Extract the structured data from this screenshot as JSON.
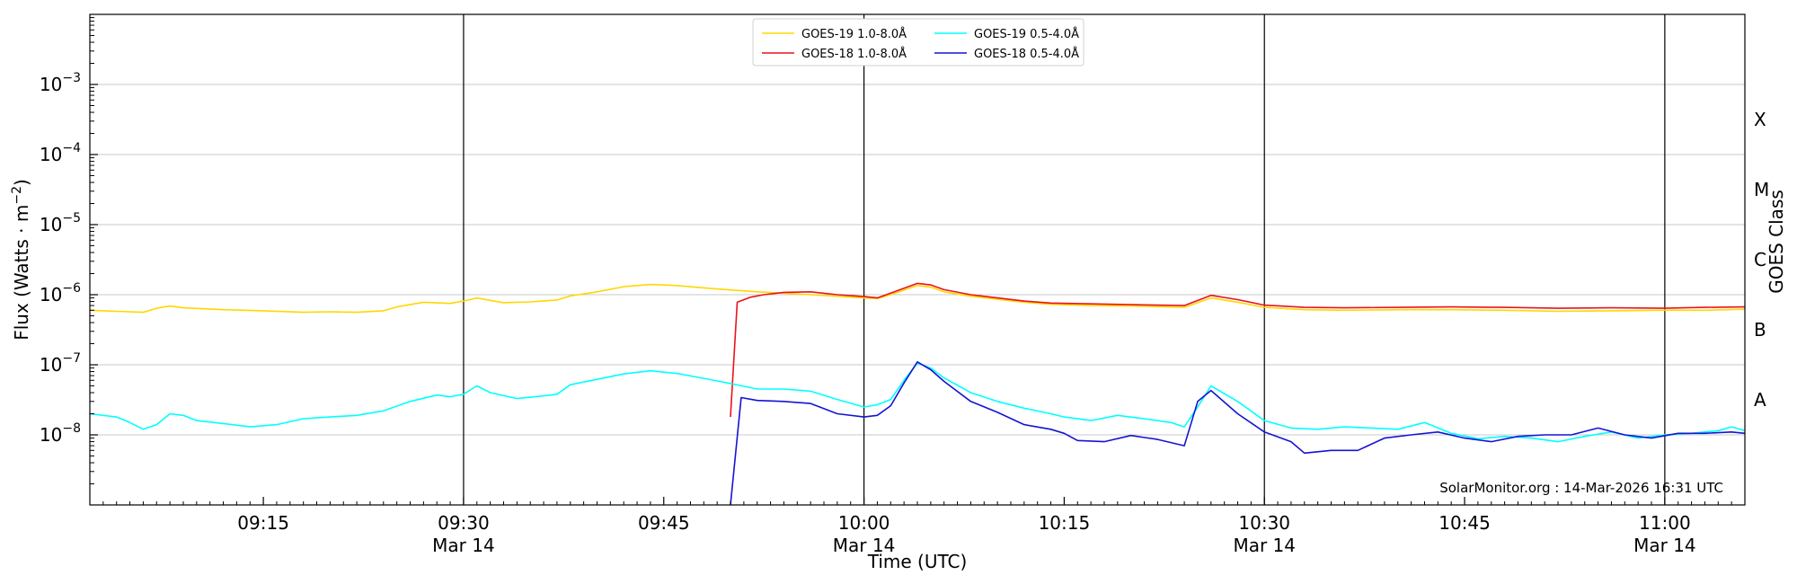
{
  "chart_data": {
    "type": "line",
    "title": "",
    "xlabel": "Time (UTC)",
    "ylabel": "Flux (Watts · m",
    "ylabel_sup": "−2",
    "ylabel_close": ")",
    "right_label": "GOES Class",
    "y_scale": "log",
    "ylim": [
      1e-09,
      0.01
    ],
    "xlim": [
      "09:02",
      "11:06"
    ],
    "grid": "horizontal",
    "legend_position": "top-center",
    "y_ticks": [
      {
        "value": 1e-08,
        "base": "10",
        "exp": "−8"
      },
      {
        "value": 1e-07,
        "base": "10",
        "exp": "−7"
      },
      {
        "value": 1e-06,
        "base": "10",
        "exp": "−6"
      },
      {
        "value": 1e-05,
        "base": "10",
        "exp": "−5"
      },
      {
        "value": 0.0001,
        "base": "10",
        "exp": "−4"
      },
      {
        "value": 0.001,
        "base": "10",
        "exp": "−3"
      }
    ],
    "x_ticks": [
      {
        "time": "09:15",
        "label": "09:15",
        "sublabel": ""
      },
      {
        "time": "09:30",
        "label": "09:30",
        "sublabel": "Mar 14"
      },
      {
        "time": "09:45",
        "label": "09:45",
        "sublabel": ""
      },
      {
        "time": "10:00",
        "label": "10:00",
        "sublabel": "Mar 14"
      },
      {
        "time": "10:15",
        "label": "10:15",
        "sublabel": ""
      },
      {
        "time": "10:30",
        "label": "10:30",
        "sublabel": "Mar 14"
      },
      {
        "time": "10:45",
        "label": "10:45",
        "sublabel": ""
      },
      {
        "time": "11:00",
        "label": "11:00",
        "sublabel": "Mar 14"
      }
    ],
    "day_lines": [
      "09:30",
      "10:00",
      "10:30",
      "11:00"
    ],
    "goes_classes": [
      {
        "label": "A",
        "value": 3.16e-08
      },
      {
        "label": "B",
        "value": 3.16e-07
      },
      {
        "label": "C",
        "value": 3.16e-06
      },
      {
        "label": "M",
        "value": 3.16e-05
      },
      {
        "label": "X",
        "value": 0.000316
      }
    ],
    "watermark": "SolarMonitor.org : 14-Mar-2026 16:31 UTC",
    "series": [
      {
        "name": "GOES-19 1.0-8.0Å",
        "color": "#ffd700",
        "points": [
          [
            "09:02",
            6e-07
          ],
          [
            "09:04",
            5.8e-07
          ],
          [
            "09:06",
            5.6e-07
          ],
          [
            "09:07",
            6.4e-07
          ],
          [
            "09:08",
            6.9e-07
          ],
          [
            "09:09",
            6.5e-07
          ],
          [
            "09:12",
            6.1e-07
          ],
          [
            "09:15",
            5.9e-07
          ],
          [
            "09:18",
            5.6e-07
          ],
          [
            "09:20",
            5.7e-07
          ],
          [
            "09:22",
            5.6e-07
          ],
          [
            "09:24",
            5.9e-07
          ],
          [
            "09:25",
            6.7e-07
          ],
          [
            "09:27",
            7.8e-07
          ],
          [
            "09:29",
            7.5e-07
          ],
          [
            "09:30",
            8.1e-07
          ],
          [
            "09:31",
            9e-07
          ],
          [
            "09:32",
            8.3e-07
          ],
          [
            "09:33",
            7.7e-07
          ],
          [
            "09:35",
            7.9e-07
          ],
          [
            "09:37",
            8.4e-07
          ],
          [
            "09:38",
            9.6e-07
          ],
          [
            "09:40",
            1.1e-06
          ],
          [
            "09:42",
            1.3e-06
          ],
          [
            "09:44",
            1.4e-06
          ],
          [
            "09:46",
            1.35e-06
          ],
          [
            "09:48",
            1.25e-06
          ],
          [
            "09:50",
            1.17e-06
          ],
          [
            "09:52",
            1.1e-06
          ],
          [
            "09:54",
            1.05e-06
          ],
          [
            "09:56",
            1e-06
          ],
          [
            "09:58",
            9.5e-07
          ],
          [
            "10:00",
            9e-07
          ],
          [
            "10:01",
            8.8e-07
          ],
          [
            "10:02",
            1e-06
          ],
          [
            "10:04",
            1.35e-06
          ],
          [
            "10:05",
            1.28e-06
          ],
          [
            "10:06",
            1.1e-06
          ],
          [
            "10:08",
            9.5e-07
          ],
          [
            "10:10",
            8.6e-07
          ],
          [
            "10:12",
            7.8e-07
          ],
          [
            "10:14",
            7.3e-07
          ],
          [
            "10:17",
            7e-07
          ],
          [
            "10:20",
            6.9e-07
          ],
          [
            "10:24",
            6.6e-07
          ],
          [
            "10:26",
            9e-07
          ],
          [
            "10:28",
            7.8e-07
          ],
          [
            "10:30",
            6.6e-07
          ],
          [
            "10:33",
            6.1e-07
          ],
          [
            "10:36",
            6e-07
          ],
          [
            "10:40",
            6.1e-07
          ],
          [
            "10:44",
            6.1e-07
          ],
          [
            "10:48",
            6e-07
          ],
          [
            "10:52",
            5.8e-07
          ],
          [
            "10:56",
            5.9e-07
          ],
          [
            "11:00",
            6e-07
          ],
          [
            "11:03",
            6e-07
          ],
          [
            "11:06",
            6.2e-07
          ]
        ]
      },
      {
        "name": "GOES-18 1.0-8.0Å",
        "color": "#e8141b",
        "points": [
          [
            "09:50",
            1.8e-08
          ],
          [
            "09:50.5",
            7.8e-07
          ],
          [
            "09:51.5",
            9.2e-07
          ],
          [
            "09:52.5",
            1e-06
          ],
          [
            "09:54",
            1.08e-06
          ],
          [
            "09:56",
            1.1e-06
          ],
          [
            "09:58",
            1e-06
          ],
          [
            "10:00",
            9.4e-07
          ],
          [
            "10:01",
            9e-07
          ],
          [
            "10:02",
            1.05e-06
          ],
          [
            "10:04",
            1.45e-06
          ],
          [
            "10:05",
            1.38e-06
          ],
          [
            "10:06",
            1.18e-06
          ],
          [
            "10:08",
            1e-06
          ],
          [
            "10:10",
            9e-07
          ],
          [
            "10:12",
            8.1e-07
          ],
          [
            "10:14",
            7.6e-07
          ],
          [
            "10:17",
            7.4e-07
          ],
          [
            "10:20",
            7.2e-07
          ],
          [
            "10:24",
            7e-07
          ],
          [
            "10:26",
            9.8e-07
          ],
          [
            "10:28",
            8.5e-07
          ],
          [
            "10:30",
            7.1e-07
          ],
          [
            "10:33",
            6.6e-07
          ],
          [
            "10:36",
            6.5e-07
          ],
          [
            "10:40",
            6.6e-07
          ],
          [
            "10:44",
            6.7e-07
          ],
          [
            "10:48",
            6.6e-07
          ],
          [
            "10:52",
            6.4e-07
          ],
          [
            "10:56",
            6.5e-07
          ],
          [
            "11:00",
            6.4e-07
          ],
          [
            "11:03",
            6.6e-07
          ],
          [
            "11:06",
            6.7e-07
          ]
        ]
      },
      {
        "name": "GOES-19 0.5-4.0Å",
        "color": "#00ffff",
        "points": [
          [
            "09:02",
            2e-08
          ],
          [
            "09:04",
            1.8e-08
          ],
          [
            "09:05",
            1.5e-08
          ],
          [
            "09:06",
            1.2e-08
          ],
          [
            "09:07",
            1.4e-08
          ],
          [
            "09:08",
            2e-08
          ],
          [
            "09:09",
            1.9e-08
          ],
          [
            "09:10",
            1.6e-08
          ],
          [
            "09:12",
            1.45e-08
          ],
          [
            "09:14",
            1.3e-08
          ],
          [
            "09:16",
            1.4e-08
          ],
          [
            "09:18",
            1.7e-08
          ],
          [
            "09:20",
            1.8e-08
          ],
          [
            "09:22",
            1.9e-08
          ],
          [
            "09:24",
            2.2e-08
          ],
          [
            "09:26",
            3e-08
          ],
          [
            "09:28",
            3.7e-08
          ],
          [
            "09:29",
            3.5e-08
          ],
          [
            "09:30",
            3.8e-08
          ],
          [
            "09:31",
            5e-08
          ],
          [
            "09:32",
            4e-08
          ],
          [
            "09:34",
            3.3e-08
          ],
          [
            "09:36",
            3.6e-08
          ],
          [
            "09:37",
            3.8e-08
          ],
          [
            "09:38",
            5.2e-08
          ],
          [
            "09:40",
            6.2e-08
          ],
          [
            "09:42",
            7.4e-08
          ],
          [
            "09:44",
            8.2e-08
          ],
          [
            "09:46",
            7.5e-08
          ],
          [
            "09:48",
            6.4e-08
          ],
          [
            "09:50",
            5.4e-08
          ],
          [
            "09:52",
            4.5e-08
          ],
          [
            "09:54",
            4.5e-08
          ],
          [
            "09:56",
            4.2e-08
          ],
          [
            "09:58",
            3.2e-08
          ],
          [
            "10:00",
            2.5e-08
          ],
          [
            "10:01",
            2.7e-08
          ],
          [
            "10:02",
            3.2e-08
          ],
          [
            "10:03",
            6e-08
          ],
          [
            "10:04",
            1.05e-07
          ],
          [
            "10:05",
            9e-08
          ],
          [
            "10:06",
            6.5e-08
          ],
          [
            "10:08",
            4e-08
          ],
          [
            "10:10",
            3e-08
          ],
          [
            "10:12",
            2.4e-08
          ],
          [
            "10:14",
            2e-08
          ],
          [
            "10:15",
            1.8e-08
          ],
          [
            "10:17",
            1.6e-08
          ],
          [
            "10:19",
            1.9e-08
          ],
          [
            "10:21",
            1.7e-08
          ],
          [
            "10:23",
            1.5e-08
          ],
          [
            "10:24",
            1.3e-08
          ],
          [
            "10:25",
            2.5e-08
          ],
          [
            "10:26",
            5e-08
          ],
          [
            "10:28",
            3e-08
          ],
          [
            "10:30",
            1.6e-08
          ],
          [
            "10:32",
            1.25e-08
          ],
          [
            "10:34",
            1.2e-08
          ],
          [
            "10:36",
            1.3e-08
          ],
          [
            "10:40",
            1.2e-08
          ],
          [
            "10:42",
            1.5e-08
          ],
          [
            "10:44",
            1.05e-08
          ],
          [
            "10:46",
            8.8e-09
          ],
          [
            "10:48",
            9.5e-09
          ],
          [
            "10:50",
            9e-09
          ],
          [
            "10:52",
            8e-09
          ],
          [
            "10:54",
            9.5e-09
          ],
          [
            "10:56",
            1.1e-08
          ],
          [
            "10:58",
            9e-09
          ],
          [
            "11:00",
            1e-08
          ],
          [
            "11:02",
            1.05e-08
          ],
          [
            "11:04",
            1.15e-08
          ],
          [
            "11:05",
            1.3e-08
          ],
          [
            "11:06",
            1.15e-08
          ]
        ]
      },
      {
        "name": "GOES-18 0.5-4.0Å",
        "color": "#1414d2",
        "points": [
          [
            "09:50",
            1e-09
          ],
          [
            "09:50.8",
            3.4e-08
          ],
          [
            "09:52",
            3.1e-08
          ],
          [
            "09:54",
            3e-08
          ],
          [
            "09:56",
            2.8e-08
          ],
          [
            "09:58",
            2e-08
          ],
          [
            "10:00",
            1.8e-08
          ],
          [
            "10:01",
            1.9e-08
          ],
          [
            "10:02",
            2.6e-08
          ],
          [
            "10:03",
            5.5e-08
          ],
          [
            "10:04",
            1.1e-07
          ],
          [
            "10:05",
            8.5e-08
          ],
          [
            "10:06",
            5.8e-08
          ],
          [
            "10:08",
            3e-08
          ],
          [
            "10:10",
            2.1e-08
          ],
          [
            "10:12",
            1.4e-08
          ],
          [
            "10:14",
            1.2e-08
          ],
          [
            "10:15",
            1.05e-08
          ],
          [
            "10:16",
            8.3e-09
          ],
          [
            "10:18",
            8e-09
          ],
          [
            "10:20",
            9.8e-09
          ],
          [
            "10:22",
            8.6e-09
          ],
          [
            "10:24",
            7e-09
          ],
          [
            "10:25",
            3e-08
          ],
          [
            "10:26",
            4.3e-08
          ],
          [
            "10:28",
            2e-08
          ],
          [
            "10:30",
            1.1e-08
          ],
          [
            "10:32",
            8e-09
          ],
          [
            "10:33",
            5.5e-09
          ],
          [
            "10:35",
            6e-09
          ],
          [
            "10:37",
            6e-09
          ],
          [
            "10:39",
            9e-09
          ],
          [
            "10:41",
            1e-08
          ],
          [
            "10:43",
            1.1e-08
          ],
          [
            "10:45",
            9e-09
          ],
          [
            "10:47",
            8e-09
          ],
          [
            "10:49",
            9.5e-09
          ],
          [
            "10:51",
            1e-08
          ],
          [
            "10:53",
            1e-08
          ],
          [
            "10:55",
            1.25e-08
          ],
          [
            "10:57",
            1e-08
          ],
          [
            "10:59",
            9e-09
          ],
          [
            "11:01",
            1.05e-08
          ],
          [
            "11:03",
            1.05e-08
          ],
          [
            "11:05",
            1.1e-08
          ],
          [
            "11:06",
            1.05e-08
          ]
        ]
      }
    ]
  }
}
